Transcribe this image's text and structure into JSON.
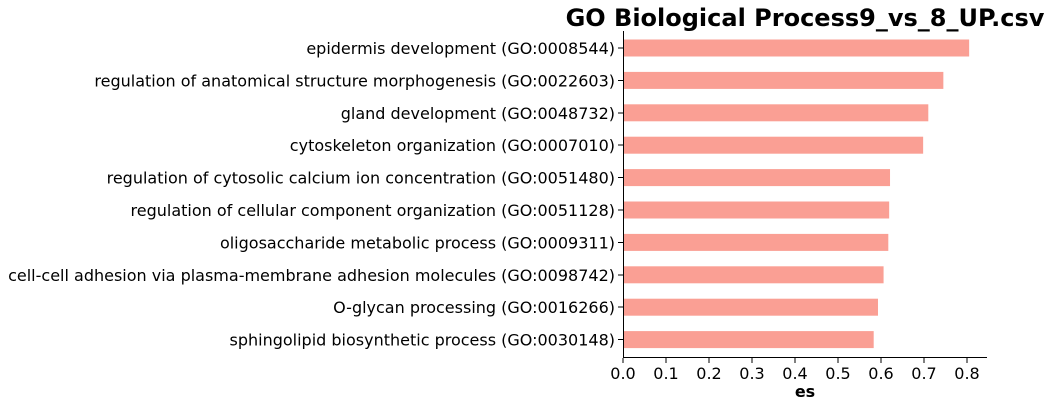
{
  "chart_data": {
    "type": "bar",
    "orientation": "horizontal",
    "title": "GO Biological Process9_vs_8_UP.csv",
    "xlabel": "es",
    "ylabel": "",
    "xlim": [
      0.0,
      0.85
    ],
    "xticks": [
      "0.0",
      "0.1",
      "0.2",
      "0.3",
      "0.4",
      "0.5",
      "0.6",
      "0.7",
      "0.8"
    ],
    "grid": false,
    "bar_color": "#fa9f94",
    "categories": [
      "epidermis development (GO:0008544)",
      "regulation of anatomical structure morphogenesis (GO:0022603)",
      "gland development (GO:0048732)",
      "cytoskeleton organization (GO:0007010)",
      "regulation of cytosolic calcium ion concentration (GO:0051480)",
      "regulation of cellular component organization (GO:0051128)",
      "oligosaccharide metabolic process (GO:0009311)",
      "cell-cell adhesion via plasma-membrane adhesion molecules (GO:0098742)",
      "O-glycan processing (GO:0016266)",
      "sphingolipid biosynthetic process (GO:0030148)"
    ],
    "values": [
      0.805,
      0.745,
      0.71,
      0.698,
      0.621,
      0.619,
      0.617,
      0.606,
      0.593,
      0.583
    ]
  }
}
